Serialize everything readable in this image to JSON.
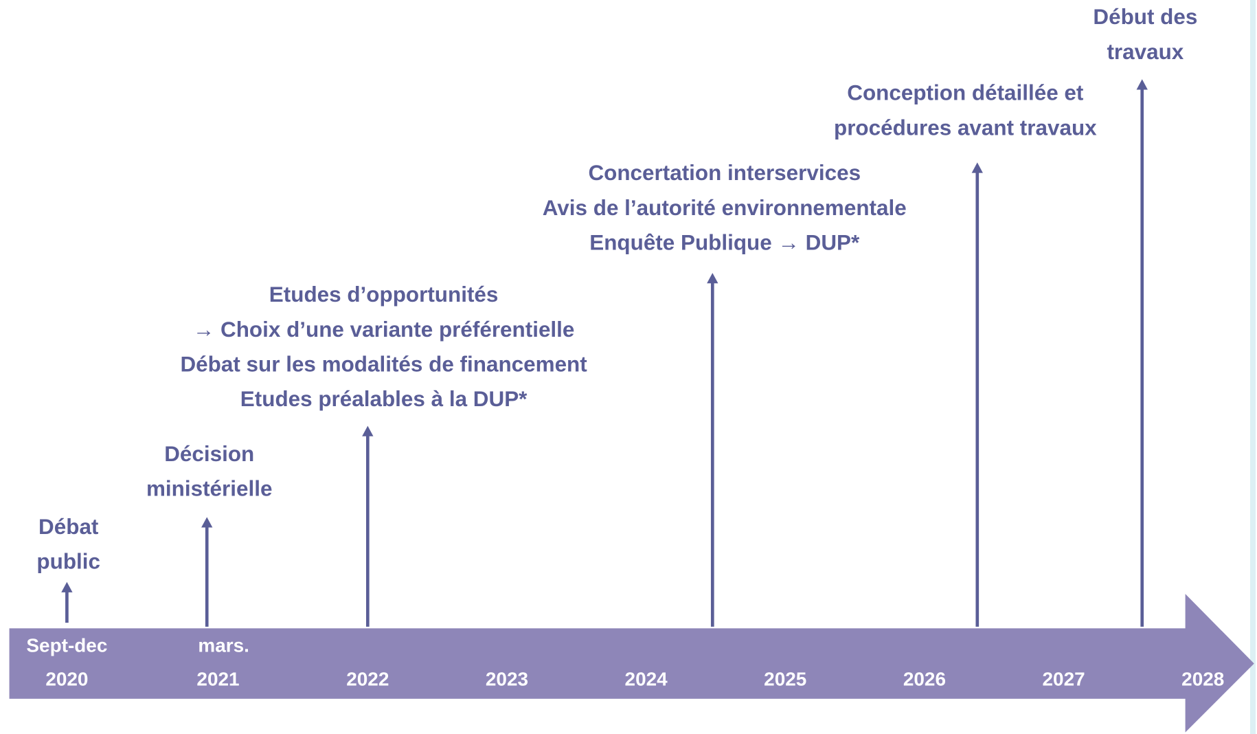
{
  "timeline": {
    "periods": [
      {
        "lines": [
          "Sept-dec",
          "2020"
        ]
      },
      {
        "lines": [
          "mars.",
          "2021"
        ]
      },
      {
        "lines": [
          "2022"
        ]
      },
      {
        "lines": [
          "2023"
        ]
      },
      {
        "lines": [
          "2024"
        ]
      },
      {
        "lines": [
          "2025"
        ]
      },
      {
        "lines": [
          "2026"
        ]
      },
      {
        "lines": [
          "2027"
        ]
      },
      {
        "lines": [
          "2028"
        ]
      }
    ],
    "milestones": [
      {
        "lines": [
          "Débat",
          "public"
        ]
      },
      {
        "lines": [
          "Décision",
          "ministérielle"
        ]
      },
      {
        "lines": [
          "Etudes d’opportunités",
          "→ Choix d’une variante préférentielle",
          "Débat sur les modalités de financement",
          "Etudes préalables à la DUP*"
        ]
      },
      {
        "lines": [
          "Concertation interservices",
          "Avis de l’autorité environnementale",
          "Enquête Publique → DUP*"
        ]
      },
      {
        "lines": [
          "Conception détaillée et",
          "procédures avant travaux"
        ]
      },
      {
        "lines": [
          "Début des",
          "travaux"
        ]
      }
    ]
  }
}
